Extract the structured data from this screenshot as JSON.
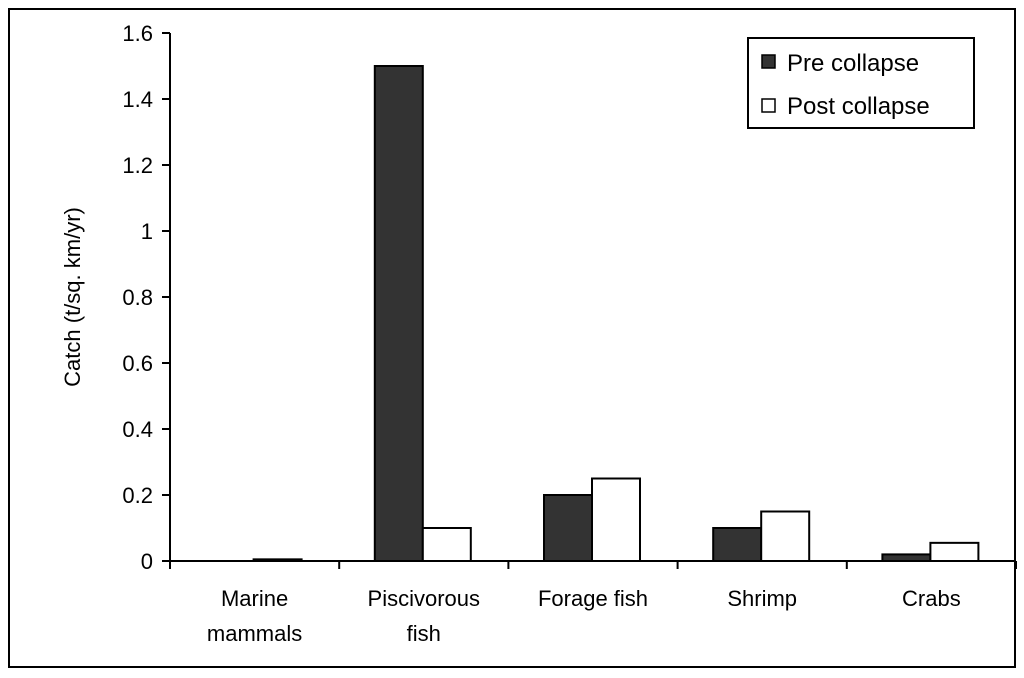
{
  "chart_data": {
    "type": "bar",
    "categories": [
      [
        "Marine",
        "mammals"
      ],
      [
        "Piscivorous",
        "fish"
      ],
      [
        "Forage fish"
      ],
      [
        "Shrimp"
      ],
      [
        "Crabs"
      ]
    ],
    "series": [
      {
        "name": "Pre collapse",
        "color": "#333333",
        "values": [
          0.0,
          1.5,
          0.2,
          0.1,
          0.02
        ]
      },
      {
        "name": "Post collapse",
        "color": "#ffffff",
        "values": [
          0.005,
          0.1,
          0.25,
          0.15,
          0.055
        ]
      }
    ],
    "ylabel": "Catch (t/sq. km/yr)",
    "ylim": [
      0,
      1.6
    ],
    "yticks": [
      "0",
      "0.2",
      "0.4",
      "0.6",
      "0.8",
      "1",
      "1.2",
      "1.4",
      "1.6"
    ],
    "grid": false,
    "legend_position": "top-right"
  }
}
